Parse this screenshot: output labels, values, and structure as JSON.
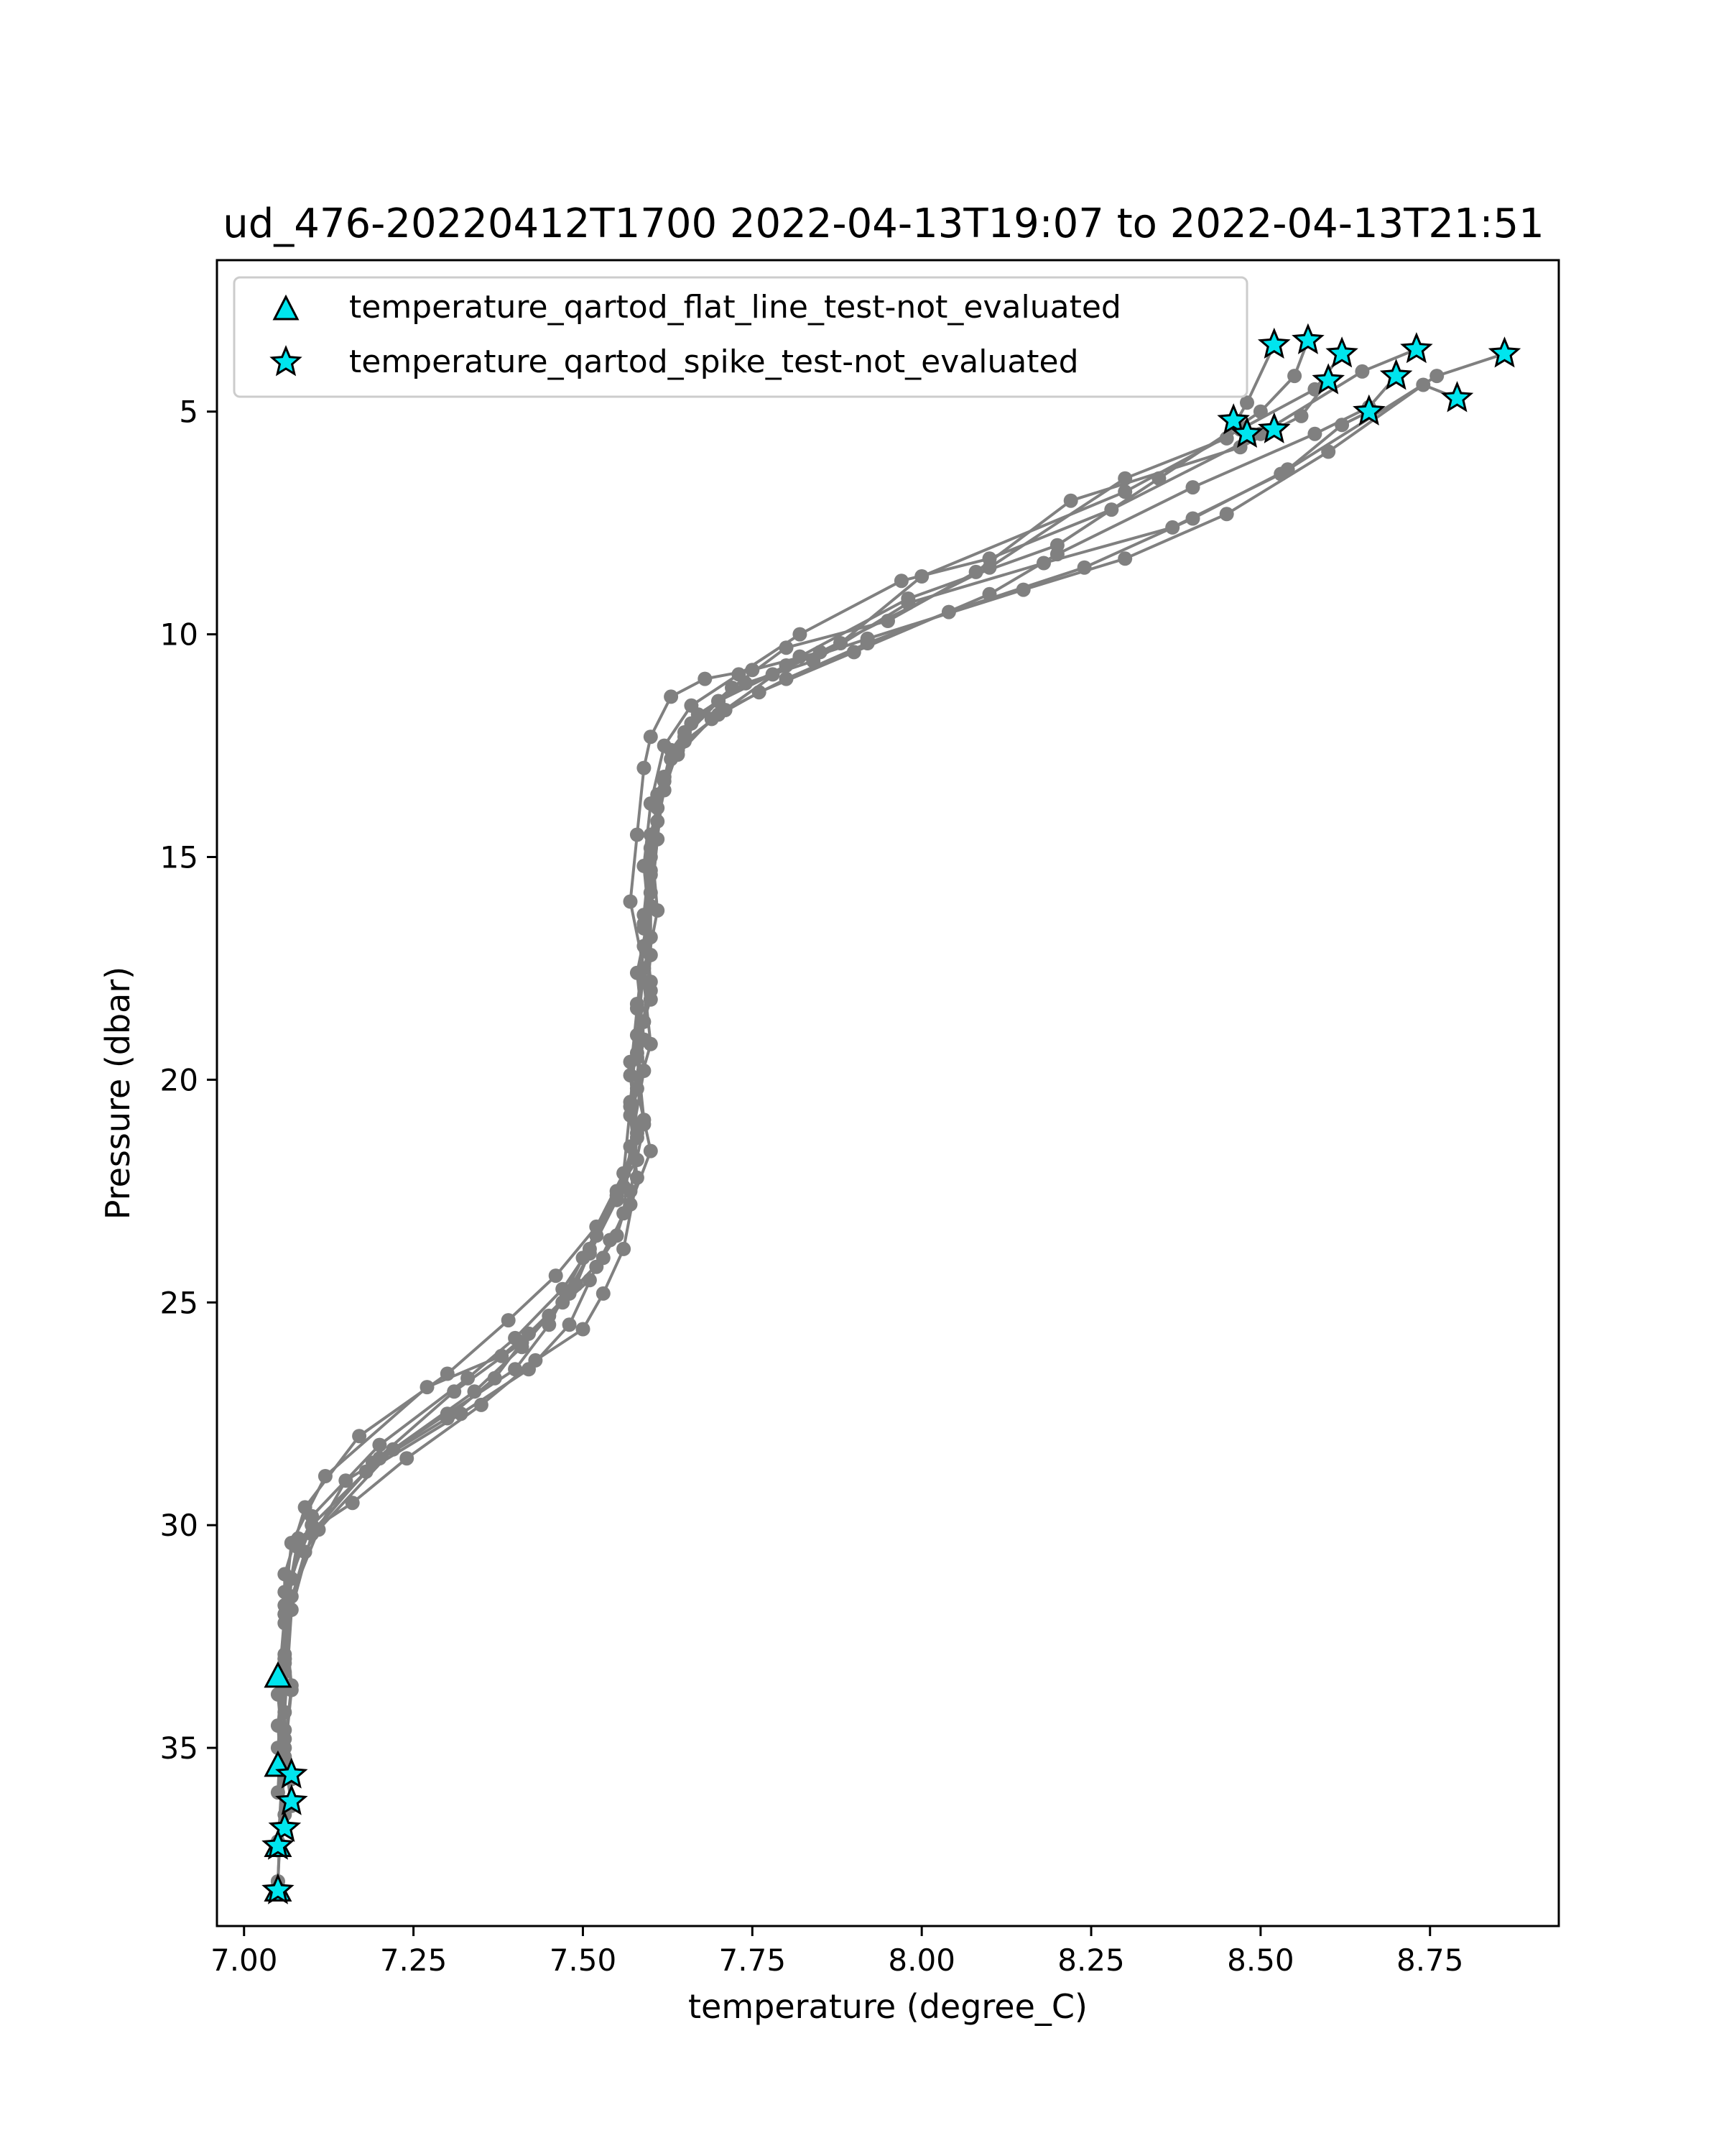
{
  "chart_data": {
    "type": "line",
    "title": "ud_476-20220412T1700 2022-04-13T19:07 to 2022-04-13T21:51",
    "xlabel": "temperature (degree_C)",
    "ylabel": "Pressure (dbar)",
    "xlim": [
      6.96,
      8.94
    ],
    "ylim": [
      39.0,
      1.6
    ],
    "y_inverted": true,
    "grid": false,
    "x_ticks": [
      "7.00",
      "7.25",
      "7.50",
      "7.75",
      "8.00",
      "8.25",
      "8.50",
      "8.75"
    ],
    "y_ticks": [
      "5",
      "10",
      "15",
      "20",
      "25",
      "30",
      "35"
    ],
    "line_color": "#808080",
    "marker_color": "#00e5ee",
    "legend": {
      "position": "top-left",
      "entries": [
        {
          "marker": "triangle",
          "label": "temperature_qartod_flat_line_test-not_evaluated"
        },
        {
          "marker": "star",
          "label": "temperature_qartod_spike_test-not_evaluated"
        }
      ]
    },
    "series": [
      {
        "x": [
          8.52,
          8.48,
          8.45,
          8.3,
          8.1,
          7.85,
          7.75,
          7.68,
          7.63,
          7.6,
          7.59,
          7.58,
          7.57,
          7.59,
          7.58,
          7.57,
          7.58,
          7.55,
          7.5,
          7.45,
          7.4,
          7.3,
          7.2,
          7.1,
          7.06,
          7.06,
          7.05,
          7.06,
          7.05
        ],
        "y": [
          3.5,
          4.8,
          5.6,
          6.5,
          8.5,
          10.4,
          10.8,
          11.0,
          11.4,
          12.3,
          13.0,
          14.5,
          16.0,
          17.5,
          19.0,
          20.5,
          21.8,
          22.5,
          24.0,
          25.5,
          26.5,
          27.5,
          28.5,
          30.0,
          31.5,
          33.0,
          34.5,
          36.5,
          37.2
        ]
      },
      {
        "x": [
          8.57,
          8.55,
          8.5,
          8.35,
          8.2,
          7.98,
          7.82,
          7.7,
          7.64,
          7.62,
          7.6,
          7.59,
          7.6,
          7.58,
          7.59,
          7.57,
          7.55,
          7.52,
          7.48,
          7.42,
          7.32,
          7.18,
          7.08,
          7.06,
          7.05,
          7.06,
          7.05
        ],
        "y": [
          3.4,
          4.2,
          5.0,
          6.5,
          8.0,
          9.2,
          10.5,
          11.8,
          12.6,
          13.5,
          15.0,
          16.5,
          18.0,
          19.5,
          21.0,
          22.5,
          23.5,
          24.2,
          25.5,
          26.5,
          27.5,
          28.8,
          30.5,
          32.0,
          33.8,
          35.5,
          37.1
        ]
      },
      {
        "x": [
          8.62,
          8.58,
          8.47,
          8.3,
          8.0,
          7.88,
          7.78,
          7.7,
          7.65,
          7.62,
          7.6,
          7.61,
          7.59,
          7.6,
          7.57,
          7.58,
          7.56,
          7.53,
          7.5,
          7.43,
          7.35,
          7.24,
          7.16,
          7.08,
          7.06,
          7.07,
          7.06,
          7.07
        ],
        "y": [
          3.7,
          4.5,
          5.4,
          6.8,
          8.7,
          10.2,
          10.9,
          11.5,
          12.2,
          13.2,
          14.5,
          16.2,
          17.8,
          19.2,
          20.8,
          22.2,
          23.8,
          24.8,
          25.6,
          26.3,
          27.3,
          28.5,
          29.5,
          30.3,
          32.0,
          33.6,
          35.0,
          35.7
        ]
      },
      {
        "x": [
          8.73,
          8.65,
          8.5,
          8.28,
          8.1,
          7.97,
          7.82,
          7.73,
          7.66,
          7.62,
          7.6,
          7.59,
          7.6,
          7.58,
          7.59,
          7.57,
          7.56,
          7.53,
          7.48,
          7.42,
          7.37,
          7.3,
          7.15,
          7.09,
          7.06,
          7.07,
          7.06,
          7.07
        ],
        "y": [
          3.6,
          4.1,
          5.5,
          7.2,
          8.3,
          8.8,
          10.0,
          10.9,
          11.6,
          12.5,
          13.8,
          15.2,
          16.8,
          18.3,
          19.8,
          21.5,
          23.0,
          24.0,
          24.8,
          25.7,
          26.7,
          27.6,
          29.0,
          30.6,
          32.2,
          33.7,
          35.2,
          36.3
        ]
      },
      {
        "x": [
          8.6,
          8.56,
          8.47,
          8.22,
          8.08,
          7.95,
          7.8,
          7.72,
          7.66,
          7.63,
          7.61,
          7.6,
          7.6,
          7.59,
          7.58,
          7.6,
          7.57,
          7.54,
          7.51,
          7.45,
          7.38,
          7.27,
          7.12,
          7.07,
          7.06,
          7.06,
          7.05,
          7.06
        ],
        "y": [
          4.3,
          5.1,
          5.8,
          7.0,
          8.6,
          9.7,
          10.3,
          11.2,
          12.0,
          12.8,
          14.2,
          15.8,
          17.2,
          18.7,
          20.2,
          21.6,
          22.8,
          23.6,
          24.5,
          25.3,
          26.2,
          26.9,
          28.9,
          30.4,
          31.8,
          33.3,
          35.0,
          36.8
        ]
      },
      {
        "x": [
          8.7,
          8.66,
          8.58,
          8.4,
          8.2,
          8.1,
          7.9,
          7.76,
          7.69,
          7.64,
          7.61,
          7.6,
          7.59,
          7.6,
          7.57,
          7.58,
          7.55,
          7.51,
          7.47,
          7.4,
          7.33,
          7.2,
          7.1,
          7.07,
          7.06,
          7.06,
          7.05
        ],
        "y": [
          4.2,
          4.9,
          5.5,
          6.7,
          8.2,
          9.1,
          10.4,
          11.3,
          11.9,
          12.7,
          13.6,
          15.3,
          16.6,
          18.2,
          19.6,
          21.2,
          22.6,
          23.8,
          24.7,
          25.8,
          26.7,
          28.2,
          29.8,
          31.2,
          32.9,
          34.8,
          38.0
        ]
      },
      {
        "x": [
          8.66,
          8.62,
          8.54,
          8.4,
          8.24,
          8.04,
          7.92,
          7.8,
          7.71,
          7.65,
          7.62,
          7.6,
          7.59,
          7.6,
          7.58,
          7.59,
          7.56,
          7.52,
          7.49,
          7.41,
          7.34,
          7.22,
          7.11,
          7.07,
          7.06,
          7.06,
          7.05
        ],
        "y": [
          5.0,
          5.3,
          6.3,
          7.4,
          8.5,
          9.5,
          10.2,
          11.0,
          11.7,
          12.4,
          13.3,
          14.8,
          16.3,
          17.8,
          19.4,
          20.9,
          22.4,
          23.5,
          24.6,
          26.0,
          27.0,
          28.3,
          30.1,
          31.6,
          33.1,
          34.6,
          37.3
        ]
      },
      {
        "x": [
          8.79,
          8.74,
          8.6,
          8.45,
          8.3,
          8.15,
          7.92,
          7.8,
          7.7,
          7.65,
          7.62,
          7.61,
          7.6,
          7.58,
          7.59,
          7.57,
          7.56,
          7.52,
          7.46,
          7.39,
          7.3,
          7.17,
          7.09,
          7.06,
          7.06,
          7.05
        ],
        "y": [
          4.7,
          4.4,
          5.9,
          7.3,
          8.3,
          9.0,
          10.1,
          10.7,
          11.5,
          12.3,
          13.2,
          14.6,
          16.1,
          17.6,
          19.1,
          20.6,
          22.1,
          23.3,
          24.4,
          25.4,
          26.6,
          28.0,
          29.6,
          31.1,
          33.0,
          36.0
        ]
      },
      {
        "x": [
          8.86,
          8.76,
          8.53,
          8.37,
          8.18,
          7.98,
          7.84,
          7.74,
          7.67,
          7.63,
          7.61,
          7.6,
          7.59,
          7.58,
          7.57,
          7.58,
          7.55,
          7.51,
          7.47,
          7.41,
          7.31,
          7.19,
          7.1,
          7.07,
          7.06,
          7.05
        ],
        "y": [
          3.7,
          4.2,
          6.4,
          7.6,
          8.4,
          9.3,
          10.6,
          11.1,
          11.8,
          12.6,
          13.9,
          15.4,
          17.0,
          18.4,
          19.9,
          21.3,
          22.7,
          23.9,
          25.0,
          25.9,
          27.0,
          28.6,
          30.2,
          31.9,
          34.2,
          38.0
        ]
      }
    ],
    "flat_line_points": {
      "x": [
        7.05,
        7.05,
        7.05,
        7.05
      ],
      "y": [
        33.4,
        35.4,
        37.2,
        38.2
      ]
    },
    "spike_points": {
      "x": [
        8.52,
        8.57,
        8.62,
        8.73,
        8.86,
        8.6,
        8.7,
        8.66,
        8.79,
        8.46,
        8.48,
        8.52,
        7.07,
        7.07,
        7.06,
        7.05,
        7.05
      ],
      "y": [
        3.5,
        3.4,
        3.7,
        3.6,
        3.7,
        4.3,
        4.2,
        5.0,
        4.7,
        5.2,
        5.5,
        5.4,
        35.6,
        36.2,
        36.8,
        37.2,
        38.2
      ]
    }
  }
}
